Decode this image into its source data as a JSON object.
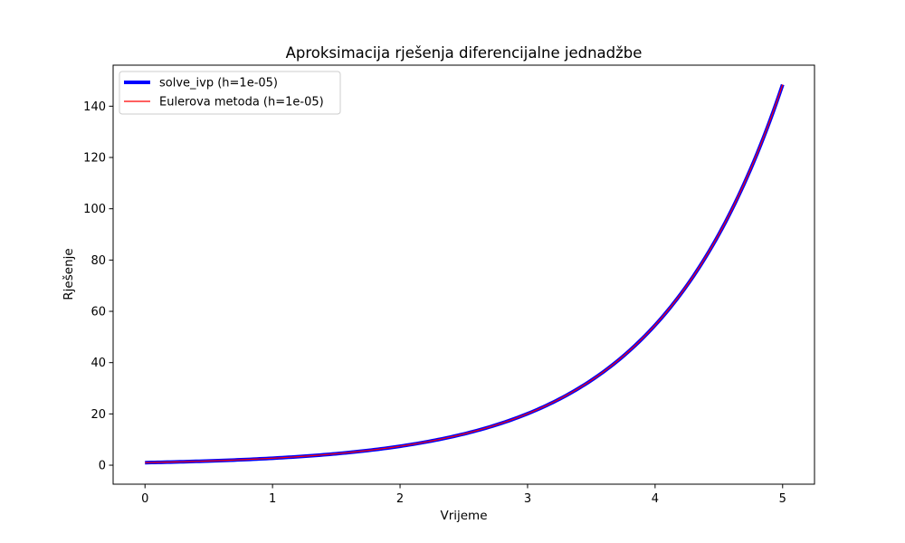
{
  "chart_data": {
    "type": "line",
    "title": "Aproksimacija rješenja diferencijalne jednadžbe",
    "xlabel": "Vrijeme",
    "ylabel": "Rješenje",
    "xlim": [
      -0.25,
      5.25
    ],
    "ylim": [
      -7.4,
      156.0
    ],
    "xticks": [
      0,
      1,
      2,
      3,
      4,
      5
    ],
    "yticks": [
      0,
      20,
      40,
      60,
      80,
      100,
      120,
      140
    ],
    "grid": false,
    "legend_position": "top-left",
    "series": [
      {
        "name": "solve_ivp (h=1e-05)",
        "color": "#0000ff",
        "x": [
          0,
          0.25,
          0.5,
          0.75,
          1,
          1.25,
          1.5,
          1.75,
          2,
          2.25,
          2.5,
          2.75,
          3,
          3.25,
          3.5,
          3.75,
          4,
          4.25,
          4.5,
          4.75,
          5
        ],
        "values": [
          1.0,
          1.28,
          1.65,
          2.12,
          2.72,
          3.49,
          4.48,
          5.75,
          7.39,
          9.49,
          12.18,
          15.64,
          20.09,
          25.79,
          33.12,
          42.52,
          54.6,
          70.11,
          90.02,
          115.58,
          148.41
        ]
      },
      {
        "name": "Eulerova metoda (h=1e-05)",
        "color": "#ff0000",
        "x": [
          0,
          0.25,
          0.5,
          0.75,
          1,
          1.25,
          1.5,
          1.75,
          2,
          2.25,
          2.5,
          2.75,
          3,
          3.25,
          3.5,
          3.75,
          4,
          4.25,
          4.5,
          4.75,
          5
        ],
        "values": [
          1.0,
          1.28,
          1.65,
          2.12,
          2.72,
          3.49,
          4.48,
          5.75,
          7.39,
          9.49,
          12.18,
          15.64,
          20.09,
          25.79,
          33.12,
          42.52,
          54.6,
          70.11,
          90.02,
          115.58,
          148.41
        ]
      }
    ]
  }
}
